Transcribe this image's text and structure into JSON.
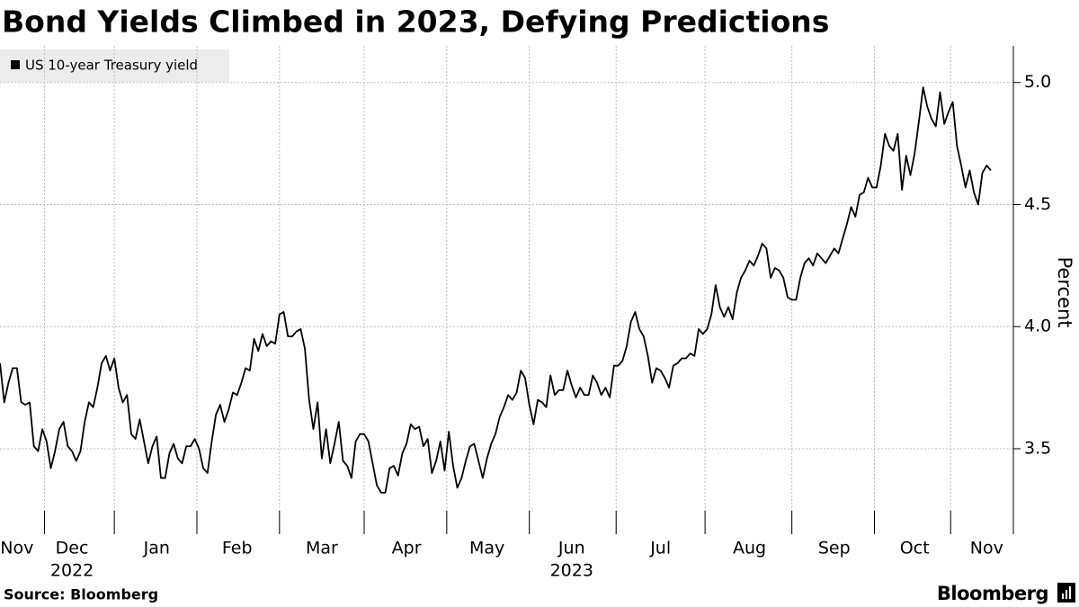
{
  "chart_data": {
    "type": "line",
    "title": "Bond Yields Climbed in 2023, Defying Predictions",
    "y_label": "Percent",
    "source": "Source: Bloomberg",
    "brand": "Bloomberg",
    "legend": "top-left",
    "grid": true,
    "ylim": [
      3.15,
      5.15
    ],
    "yticks": [
      3.5,
      {
        "value": 4,
        "label": "4.0"
      },
      4.5,
      {
        "value": 5,
        "label": "5.0"
      }
    ],
    "categories": [
      null,
      null,
      null,
      null,
      "Nov",
      null,
      null,
      null,
      null,
      null,
      null,
      null,
      null,
      null,
      null,
      null,
      null,
      "Dec",
      null,
      null,
      null,
      null,
      null,
      null,
      null,
      null,
      null,
      null,
      null,
      null,
      null,
      null,
      null,
      null,
      null,
      null,
      null,
      "Jan",
      null,
      null,
      null,
      null,
      null,
      null,
      null,
      null,
      null,
      null,
      null,
      null,
      null,
      null,
      null,
      null,
      null,
      null,
      "Feb",
      null,
      null,
      null,
      null,
      null,
      null,
      null,
      null,
      null,
      null,
      null,
      null,
      null,
      null,
      null,
      null,
      null,
      null,
      null,
      "Mar",
      null,
      null,
      null,
      null,
      null,
      null,
      null,
      null,
      null,
      null,
      null,
      null,
      null,
      null,
      null,
      null,
      null,
      null,
      null,
      "Apr",
      null,
      null,
      null,
      null,
      null,
      null,
      null,
      null,
      null,
      null,
      null,
      null,
      null,
      null,
      null,
      null,
      null,
      null,
      "May",
      null,
      null,
      null,
      null,
      null,
      null,
      null,
      null,
      null,
      null,
      null,
      null,
      null,
      null,
      null,
      null,
      null,
      null,
      null,
      "Jun",
      null,
      null,
      null,
      null,
      null,
      null,
      null,
      null,
      null,
      null,
      null,
      null,
      null,
      null,
      null,
      null,
      null,
      null,
      null,
      null,
      "Jul",
      null,
      null,
      null,
      null,
      null,
      null,
      null,
      null,
      null,
      null,
      null,
      null,
      null,
      null,
      null,
      null,
      null,
      null,
      null,
      null,
      "Aug",
      null,
      null,
      null,
      null,
      null,
      null,
      null,
      null,
      null,
      null,
      null,
      null,
      null,
      null,
      null,
      null,
      null,
      null,
      null,
      "Sep",
      null,
      null,
      null,
      null,
      null,
      null,
      null,
      null,
      null,
      null,
      null,
      null,
      null,
      null,
      null,
      null,
      null,
      null,
      "Oct",
      null,
      null,
      null,
      null,
      null,
      null,
      null,
      null,
      null,
      null,
      null,
      null,
      null,
      null,
      null,
      null,
      "Nov",
      null
    ],
    "year_labels": [
      null,
      null,
      null,
      null,
      null,
      null,
      null,
      null,
      null,
      null,
      null,
      null,
      null,
      null,
      null,
      null,
      null,
      "2022",
      null,
      null,
      null,
      null,
      null,
      null,
      null,
      null,
      null,
      null,
      null,
      null,
      null,
      null,
      null,
      null,
      null,
      null,
      null,
      null,
      null,
      null,
      null,
      null,
      null,
      null,
      null,
      null,
      null,
      null,
      null,
      null,
      null,
      null,
      null,
      null,
      null,
      null,
      null,
      null,
      null,
      null,
      null,
      null,
      null,
      null,
      null,
      null,
      null,
      null,
      null,
      null,
      null,
      null,
      null,
      null,
      null,
      null,
      null,
      null,
      null,
      null,
      null,
      null,
      null,
      null,
      null,
      null,
      null,
      null,
      null,
      null,
      null,
      null,
      null,
      null,
      null,
      null,
      null,
      null,
      null,
      null,
      null,
      null,
      null,
      null,
      null,
      null,
      null,
      null,
      null,
      null,
      null,
      null,
      null,
      null,
      null,
      null,
      null,
      null,
      null,
      null,
      null,
      null,
      null,
      null,
      null,
      null,
      null,
      null,
      null,
      null,
      null,
      null,
      null,
      null,
      null,
      "2023",
      null,
      null,
      null,
      null,
      null,
      null,
      null,
      null,
      null,
      null,
      null,
      null,
      null,
      null,
      null,
      null,
      null,
      null,
      null,
      null,
      null,
      null,
      null,
      null,
      null,
      null,
      null,
      null,
      null,
      null,
      null,
      null,
      null,
      null,
      null,
      null,
      null,
      null,
      null,
      null,
      null,
      null,
      null,
      null,
      null,
      null,
      null,
      null,
      null,
      null,
      null,
      null,
      null,
      null,
      null,
      null,
      null,
      null,
      null,
      null,
      null,
      null,
      null,
      null,
      null,
      null,
      null,
      null,
      null,
      null,
      null,
      null,
      null,
      null,
      null,
      null,
      null,
      null,
      null,
      null,
      null,
      null,
      null,
      null,
      null,
      null,
      null,
      null,
      null,
      null,
      null,
      null,
      null,
      null,
      null,
      null,
      null,
      null,
      null
    ],
    "series": [
      {
        "name": "US 10-year Treasury yield",
        "color": "#000000",
        "values": [
          3.85,
          3.69,
          3.77,
          3.83,
          3.83,
          3.69,
          3.68,
          3.69,
          3.51,
          3.49,
          3.58,
          3.53,
          3.42,
          3.49,
          3.58,
          3.61,
          3.51,
          3.49,
          3.45,
          3.49,
          3.61,
          3.69,
          3.67,
          3.75,
          3.85,
          3.88,
          3.82,
          3.87,
          3.75,
          3.69,
          3.72,
          3.56,
          3.54,
          3.62,
          3.53,
          3.44,
          3.51,
          3.55,
          3.38,
          3.38,
          3.48,
          3.52,
          3.46,
          3.44,
          3.51,
          3.51,
          3.54,
          3.5,
          3.42,
          3.4,
          3.53,
          3.64,
          3.68,
          3.61,
          3.66,
          3.73,
          3.72,
          3.77,
          3.83,
          3.82,
          3.95,
          3.9,
          3.97,
          3.92,
          3.94,
          3.93,
          4.05,
          4.06,
          3.96,
          3.96,
          3.98,
          3.99,
          3.91,
          3.7,
          3.58,
          3.69,
          3.46,
          3.58,
          3.44,
          3.52,
          3.61,
          3.45,
          3.43,
          3.38,
          3.53,
          3.56,
          3.56,
          3.53,
          3.44,
          3.35,
          3.32,
          3.32,
          3.42,
          3.43,
          3.39,
          3.48,
          3.52,
          3.6,
          3.58,
          3.59,
          3.51,
          3.54,
          3.4,
          3.45,
          3.53,
          3.41,
          3.57,
          3.43,
          3.34,
          3.38,
          3.45,
          3.51,
          3.52,
          3.45,
          3.38,
          3.46,
          3.52,
          3.56,
          3.63,
          3.67,
          3.72,
          3.7,
          3.73,
          3.82,
          3.79,
          3.68,
          3.6,
          3.7,
          3.69,
          3.67,
          3.8,
          3.72,
          3.74,
          3.74,
          3.82,
          3.76,
          3.71,
          3.75,
          3.72,
          3.72,
          3.8,
          3.77,
          3.72,
          3.75,
          3.71,
          3.84,
          3.84,
          3.86,
          3.92,
          4.02,
          4.06,
          3.99,
          3.96,
          3.88,
          3.77,
          3.83,
          3.82,
          3.79,
          3.75,
          3.84,
          3.85,
          3.87,
          3.87,
          3.89,
          3.88,
          3.99,
          3.97,
          3.99,
          4.05,
          4.17,
          4.08,
          4.04,
          4.08,
          4.03,
          4.14,
          4.2,
          4.23,
          4.27,
          4.25,
          4.29,
          4.34,
          4.32,
          4.2,
          4.24,
          4.23,
          4.2,
          4.12,
          4.11,
          4.11,
          4.2,
          4.26,
          4.28,
          4.25,
          4.3,
          4.28,
          4.26,
          4.29,
          4.32,
          4.3,
          4.36,
          4.42,
          4.49,
          4.45,
          4.54,
          4.55,
          4.61,
          4.57,
          4.57,
          4.66,
          4.79,
          4.74,
          4.72,
          4.79,
          4.56,
          4.7,
          4.62,
          4.71,
          4.84,
          4.98,
          4.9,
          4.85,
          4.82,
          4.96,
          4.83,
          4.88,
          4.92,
          4.74,
          4.66,
          4.57,
          4.64,
          4.55,
          4.5,
          4.63,
          4.66,
          4.64
        ]
      }
    ]
  }
}
